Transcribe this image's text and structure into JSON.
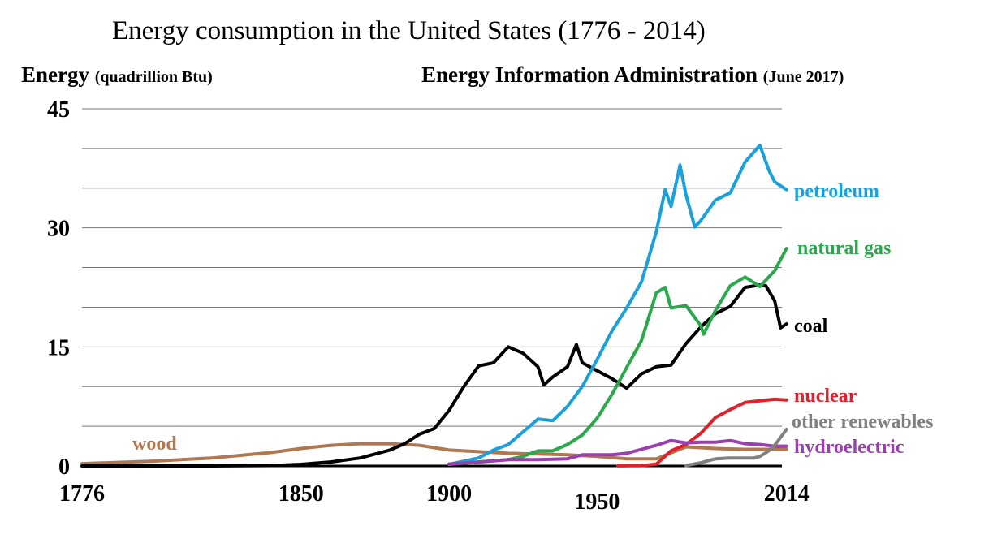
{
  "chart_data": {
    "type": "line",
    "title": "Energy consumption in the United States (1776 - 2014)",
    "ylabel": "Energy",
    "ylabel_unit": "(quadrillion Btu)",
    "source": "Energy Information Administration",
    "source_date": "(June 2017)",
    "xlim": [
      1776,
      2016
    ],
    "ylim": [
      0,
      45
    ],
    "xticks": [
      1776,
      1850,
      1900,
      1950,
      2014
    ],
    "xtick_labels": [
      "1776",
      "1850",
      "1900",
      "1950",
      "2014"
    ],
    "yticks": [
      0,
      15,
      30,
      45
    ],
    "ytick_labels": [
      "0",
      "15",
      "30",
      "45"
    ],
    "grid": true,
    "series": [
      {
        "name": "wood",
        "color": "#b07850",
        "x": [
          1776,
          1800,
          1820,
          1840,
          1850,
          1860,
          1870,
          1880,
          1890,
          1900,
          1910,
          1920,
          1930,
          1940,
          1950,
          1960,
          1970,
          1980,
          1990,
          2000,
          2014
        ],
        "y": [
          0.3,
          0.6,
          1.0,
          1.7,
          2.2,
          2.6,
          2.8,
          2.8,
          2.6,
          2.0,
          1.8,
          1.6,
          1.5,
          1.4,
          1.2,
          0.9,
          0.9,
          2.4,
          2.2,
          2.1,
          2.1
        ]
      },
      {
        "name": "coal",
        "color": "#000000",
        "x": [
          1776,
          1820,
          1840,
          1850,
          1860,
          1870,
          1880,
          1885,
          1890,
          1895,
          1900,
          1905,
          1910,
          1915,
          1920,
          1925,
          1930,
          1932,
          1935,
          1940,
          1943,
          1945,
          1950,
          1955,
          1960,
          1965,
          1970,
          1975,
          1980,
          1985,
          1990,
          1995,
          2000,
          2005,
          2007,
          2010,
          2012,
          2014
        ],
        "y": [
          0,
          0,
          0.05,
          0.2,
          0.5,
          1.0,
          2.0,
          2.8,
          4.0,
          4.7,
          7.0,
          10.0,
          12.6,
          13.0,
          15.0,
          14.2,
          12.5,
          10.2,
          11.2,
          12.5,
          15.3,
          13.0,
          12.0,
          11.0,
          9.8,
          11.6,
          12.5,
          12.7,
          15.4,
          17.5,
          19.2,
          20.1,
          22.5,
          22.8,
          22.7,
          20.8,
          17.4,
          17.9
        ]
      },
      {
        "name": "petroleum",
        "color": "#1aa0dc",
        "x": [
          1900,
          1910,
          1915,
          1920,
          1925,
          1930,
          1935,
          1940,
          1945,
          1950,
          1955,
          1960,
          1965,
          1970,
          1973,
          1975,
          1978,
          1980,
          1983,
          1985,
          1990,
          1995,
          2000,
          2005,
          2008,
          2010,
          2014
        ],
        "y": [
          0.2,
          1.0,
          2.0,
          2.7,
          4.3,
          5.9,
          5.7,
          7.5,
          10.0,
          13.4,
          17.0,
          19.9,
          23.2,
          29.5,
          34.8,
          32.7,
          37.9,
          34.2,
          30.1,
          30.9,
          33.5,
          34.4,
          38.3,
          40.4,
          37.3,
          35.8,
          34.8
        ]
      },
      {
        "name": "natural gas",
        "color": "#2aa84c",
        "x": [
          1900,
          1910,
          1920,
          1925,
          1930,
          1935,
          1940,
          1945,
          1950,
          1955,
          1960,
          1965,
          1970,
          1973,
          1975,
          1980,
          1985,
          1986,
          1990,
          1995,
          2000,
          2005,
          2010,
          2014
        ],
        "y": [
          0.2,
          0.5,
          0.8,
          1.2,
          1.9,
          1.9,
          2.7,
          3.9,
          6.0,
          9.0,
          12.4,
          15.8,
          21.8,
          22.5,
          19.9,
          20.2,
          17.7,
          16.6,
          19.6,
          22.7,
          23.8,
          22.6,
          24.6,
          27.4
        ]
      },
      {
        "name": "nuclear",
        "color": "#e0202a",
        "x": [
          1957,
          1965,
          1970,
          1975,
          1980,
          1985,
          1990,
          1995,
          2000,
          2005,
          2010,
          2014
        ],
        "y": [
          0.01,
          0.04,
          0.24,
          1.9,
          2.7,
          4.1,
          6.1,
          7.1,
          8.0,
          8.2,
          8.4,
          8.3
        ]
      },
      {
        "name": "hydroelectric",
        "color": "#9b3fb0",
        "x": [
          1900,
          1910,
          1920,
          1930,
          1940,
          1945,
          1950,
          1955,
          1960,
          1965,
          1970,
          1975,
          1980,
          1985,
          1990,
          1995,
          2000,
          2005,
          2010,
          2014
        ],
        "y": [
          0.25,
          0.5,
          0.8,
          0.8,
          0.9,
          1.4,
          1.4,
          1.4,
          1.6,
          2.1,
          2.6,
          3.2,
          2.9,
          3.0,
          3.0,
          3.2,
          2.8,
          2.7,
          2.5,
          2.5
        ]
      },
      {
        "name": "other renewables",
        "color": "#808080",
        "x": [
          1980,
          1985,
          1990,
          1995,
          2000,
          2003,
          2005,
          2008,
          2010,
          2012,
          2014
        ],
        "y": [
          0.05,
          0.4,
          0.9,
          1.0,
          1.0,
          1.0,
          1.2,
          1.9,
          2.6,
          3.6,
          4.6
        ]
      }
    ]
  }
}
